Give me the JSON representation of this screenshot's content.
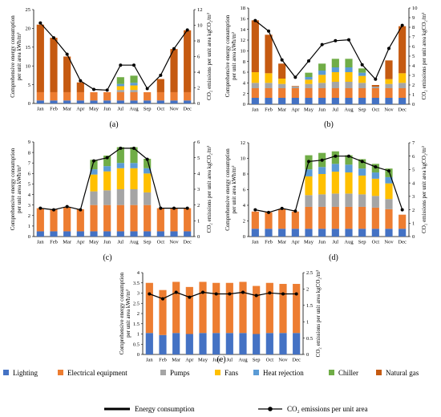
{
  "months": [
    "Jan",
    "Feb",
    "Mar",
    "Apr",
    "May",
    "Jun",
    "Jul",
    "Aug",
    "Sep",
    "Oct",
    "Nov",
    "Dec"
  ],
  "y_left_label": [
    "Comprehensive energy consumption",
    "per unit area kWh/m²"
  ],
  "y_right_label": "CO₂ emissions per unit area kgCO₂/m²",
  "legend": {
    "lighting": "Lighting",
    "electrical": "Electrical equipment",
    "pumps": "Pumps",
    "fans": "Fans",
    "heat_rejection": "Heat rejection",
    "chiller": "Chiller",
    "natural_gas": "Natural gas",
    "energy_consumption": "Energy consumption",
    "co2": "CO₂ emissions per unit area"
  },
  "colors": {
    "lighting": "#4472c4",
    "electrical": "#ed7d31",
    "pumps": "#a5a5a5",
    "fans": "#ffc000",
    "heat_rejection": "#5b9bd5",
    "chiller": "#70ad47",
    "natural_gas": "#c55a11",
    "line": "#000000"
  },
  "chart_data": [
    {
      "label": "(a)",
      "type": "bar",
      "stacked": true,
      "ylim": [
        0,
        25
      ],
      "yticks": [
        0,
        5,
        10,
        15,
        20,
        25
      ],
      "y2lim": [
        0,
        12
      ],
      "y2ticks": [
        0,
        2,
        4,
        6,
        8,
        10,
        12
      ],
      "series": [
        {
          "key": "lighting",
          "values": [
            0.8,
            0.8,
            0.8,
            0.8,
            0.8,
            0.8,
            0.8,
            0.8,
            0.8,
            0.8,
            0.8,
            0.8
          ]
        },
        {
          "key": "electrical",
          "values": [
            2.2,
            2.2,
            2.2,
            2.2,
            2.2,
            2.2,
            2.2,
            2.2,
            2.2,
            2.2,
            2.2,
            2.2
          ]
        },
        {
          "key": "pumps",
          "values": [
            0,
            0,
            0,
            0,
            0,
            0,
            0.6,
            0.6,
            0,
            0,
            0,
            0
          ]
        },
        {
          "key": "fans",
          "values": [
            0,
            0,
            0,
            0,
            0,
            0,
            1.0,
            1.2,
            0,
            0,
            0,
            0
          ]
        },
        {
          "key": "heat_rejection",
          "values": [
            0,
            0,
            0,
            0,
            0,
            0,
            0.6,
            0.7,
            0,
            0,
            0,
            0
          ]
        },
        {
          "key": "chiller",
          "values": [
            0,
            0,
            0,
            0,
            0,
            0,
            1.8,
            1.9,
            0,
            0,
            0,
            0
          ]
        },
        {
          "key": "natural_gas",
          "values": [
            18.0,
            14.5,
            9.5,
            2.6,
            0,
            0,
            0,
            0,
            0,
            3.5,
            11.5,
            16.5
          ]
        }
      ],
      "co2": [
        10.3,
        8.4,
        6.3,
        2.9,
        1.8,
        1.7,
        4.9,
        4.9,
        1.9,
        3.6,
        7.0,
        9.4
      ]
    },
    {
      "label": "(b)",
      "type": "bar",
      "stacked": true,
      "ylim": [
        0,
        18
      ],
      "yticks": [
        0,
        2,
        4,
        6,
        8,
        10,
        12,
        14,
        16,
        18
      ],
      "y2lim": [
        0,
        10
      ],
      "y2ticks": [
        0,
        1,
        2,
        3,
        4,
        5,
        6,
        7,
        8,
        9,
        10
      ],
      "series": [
        {
          "key": "lighting",
          "values": [
            1.2,
            1.2,
            1.2,
            1.2,
            1.2,
            1.2,
            1.2,
            1.2,
            1.2,
            1.2,
            1.2,
            1.2
          ]
        },
        {
          "key": "electrical",
          "values": [
            1.8,
            1.8,
            1.8,
            1.8,
            1.8,
            1.8,
            1.8,
            1.8,
            1.8,
            1.8,
            1.8,
            1.8
          ]
        },
        {
          "key": "pumps",
          "values": [
            1.0,
            1.0,
            0.8,
            0.3,
            0.8,
            1.0,
            1.2,
            1.2,
            1.0,
            0.3,
            0.8,
            1.0
          ]
        },
        {
          "key": "fans",
          "values": [
            2.0,
            1.8,
            1.0,
            0,
            0.8,
            1.5,
            1.8,
            1.8,
            1.3,
            0,
            0.9,
            1.8
          ]
        },
        {
          "key": "heat_rejection",
          "values": [
            0,
            0,
            0,
            0,
            0.5,
            0.8,
            0.9,
            0.9,
            0.6,
            0,
            0,
            0
          ]
        },
        {
          "key": "chiller",
          "values": [
            0,
            0,
            0,
            0,
            0.8,
            1.3,
            1.6,
            1.6,
            0.8,
            0,
            0,
            0
          ]
        },
        {
          "key": "natural_gas",
          "values": [
            9.7,
            7.2,
            2.8,
            0.1,
            0,
            0,
            0,
            0,
            0,
            0.3,
            3.5,
            8.8
          ]
        }
      ],
      "co2": [
        8.7,
        7.6,
        4.6,
        2.8,
        4.5,
        6.2,
        6.6,
        6.7,
        4.1,
        2.6,
        5.8,
        8.2
      ]
    },
    {
      "label": "(c)",
      "type": "bar",
      "stacked": true,
      "ylim": [
        0,
        9
      ],
      "yticks": [
        0,
        1,
        2,
        3,
        4,
        5,
        6,
        7,
        8,
        9
      ],
      "y2lim": [
        0,
        6
      ],
      "y2ticks": [
        0,
        1,
        2,
        3,
        4,
        5,
        6
      ],
      "series": [
        {
          "key": "lighting",
          "values": [
            0.5,
            0.5,
            0.5,
            0.5,
            0.5,
            0.5,
            0.5,
            0.5,
            0.5,
            0.5,
            0.5,
            0.5
          ]
        },
        {
          "key": "electrical",
          "values": [
            2.2,
            2.1,
            2.3,
            2.1,
            2.5,
            2.5,
            2.5,
            2.5,
            2.5,
            2.2,
            2.2,
            2.2
          ]
        },
        {
          "key": "pumps",
          "values": [
            0,
            0,
            0,
            0,
            1.3,
            1.4,
            1.5,
            1.5,
            1.2,
            0,
            0,
            0
          ]
        },
        {
          "key": "fans",
          "values": [
            0,
            0,
            0,
            0,
            1.6,
            1.8,
            2.0,
            2.0,
            1.8,
            0,
            0,
            0
          ]
        },
        {
          "key": "heat_rejection",
          "values": [
            0,
            0,
            0,
            0,
            0.5,
            0.5,
            0.5,
            0.5,
            0.5,
            0,
            0,
            0
          ]
        },
        {
          "key": "chiller",
          "values": [
            0,
            0,
            0,
            0,
            0.9,
            1.0,
            1.5,
            1.5,
            0.9,
            0,
            0,
            0
          ]
        },
        {
          "key": "natural_gas",
          "values": [
            0,
            0,
            0,
            0,
            0,
            0,
            0,
            0,
            0,
            0,
            0,
            0
          ]
        }
      ],
      "co2": [
        1.8,
        1.7,
        1.9,
        1.7,
        4.8,
        5.0,
        5.6,
        5.6,
        4.9,
        1.8,
        1.8,
        1.8
      ]
    },
    {
      "label": "(d)",
      "type": "bar",
      "stacked": true,
      "ylim": [
        0,
        12
      ],
      "yticks": [
        0,
        2,
        4,
        6,
        8,
        10,
        12
      ],
      "y2lim": [
        0,
        7
      ],
      "y2ticks": [
        0,
        1,
        2,
        3,
        4,
        5,
        6,
        7
      ],
      "series": [
        {
          "key": "lighting",
          "values": [
            1.0,
            1.0,
            1.0,
            1.0,
            1.0,
            1.0,
            1.0,
            1.0,
            1.0,
            1.0,
            1.0,
            1.0
          ]
        },
        {
          "key": "electrical",
          "values": [
            2.2,
            2.1,
            2.5,
            2.2,
            2.8,
            2.8,
            2.8,
            2.8,
            2.8,
            2.7,
            2.5,
            1.8
          ]
        },
        {
          "key": "pumps",
          "values": [
            0,
            0,
            0,
            0,
            1.5,
            1.6,
            1.7,
            1.7,
            1.6,
            1.5,
            1.3,
            0
          ]
        },
        {
          "key": "fans",
          "values": [
            0,
            0,
            0,
            0,
            2.4,
            2.6,
            2.8,
            2.7,
            2.4,
            2.2,
            2.0,
            0
          ]
        },
        {
          "key": "heat_rejection",
          "values": [
            0,
            0,
            0,
            0,
            0.9,
            0.9,
            1.0,
            1.0,
            0.9,
            0.8,
            0.8,
            0
          ]
        },
        {
          "key": "chiller",
          "values": [
            0,
            0,
            0,
            0,
            1.8,
            1.8,
            1.6,
            1.2,
            1.2,
            1.1,
            1.1,
            0
          ]
        },
        {
          "key": "natural_gas",
          "values": [
            0,
            0,
            0,
            0,
            0,
            0,
            0,
            0,
            0,
            0,
            0,
            0
          ]
        }
      ],
      "co2": [
        2.0,
        1.8,
        2.1,
        1.9,
        5.6,
        5.7,
        6.0,
        6.0,
        5.6,
        5.2,
        4.9,
        2.0
      ]
    },
    {
      "label": "(e)",
      "type": "bar",
      "stacked": true,
      "ylim": [
        0,
        4
      ],
      "yticks": [
        0,
        0.5,
        1,
        1.5,
        2,
        2.5,
        3,
        3.5,
        4
      ],
      "y2lim": [
        0,
        2.5
      ],
      "y2ticks": [
        0,
        0.5,
        1,
        1.5,
        2,
        2.5
      ],
      "series": [
        {
          "key": "lighting",
          "values": [
            1.05,
            0.95,
            1.05,
            1.0,
            1.05,
            1.05,
            1.05,
            1.05,
            1.0,
            1.05,
            1.05,
            1.05
          ]
        },
        {
          "key": "electrical",
          "values": [
            2.45,
            2.2,
            2.5,
            2.3,
            2.5,
            2.45,
            2.45,
            2.5,
            2.35,
            2.45,
            2.4,
            2.4
          ]
        },
        {
          "key": "pumps",
          "values": [
            0,
            0,
            0,
            0,
            0,
            0,
            0,
            0,
            0,
            0,
            0,
            0
          ]
        },
        {
          "key": "fans",
          "values": [
            0,
            0,
            0,
            0,
            0,
            0,
            0,
            0,
            0,
            0,
            0,
            0
          ]
        },
        {
          "key": "heat_rejection",
          "values": [
            0,
            0,
            0,
            0,
            0,
            0,
            0,
            0,
            0,
            0,
            0,
            0
          ]
        },
        {
          "key": "chiller",
          "values": [
            0,
            0,
            0,
            0,
            0,
            0,
            0,
            0,
            0,
            0,
            0,
            0
          ]
        },
        {
          "key": "natural_gas",
          "values": [
            0,
            0,
            0,
            0,
            0,
            0,
            0,
            0,
            0,
            0,
            0,
            0
          ]
        }
      ],
      "co2": [
        1.85,
        1.7,
        1.9,
        1.75,
        1.9,
        1.85,
        1.85,
        1.9,
        1.8,
        1.88,
        1.85,
        1.85
      ]
    }
  ]
}
